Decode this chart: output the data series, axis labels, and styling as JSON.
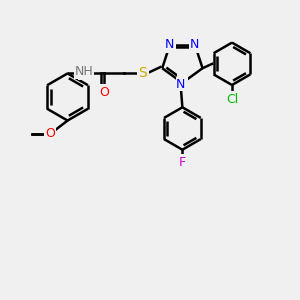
{
  "bg_color": "#f0f0f0",
  "bond_color": "#000000",
  "bond_width": 1.8,
  "atom_colors": {
    "N": "#0000ff",
    "O": "#ff0000",
    "S": "#ccaa00",
    "Cl": "#00bb00",
    "F": "#cc00cc",
    "H": "#777777"
  },
  "font_size": 9.0,
  "small_font_size": 8.0
}
